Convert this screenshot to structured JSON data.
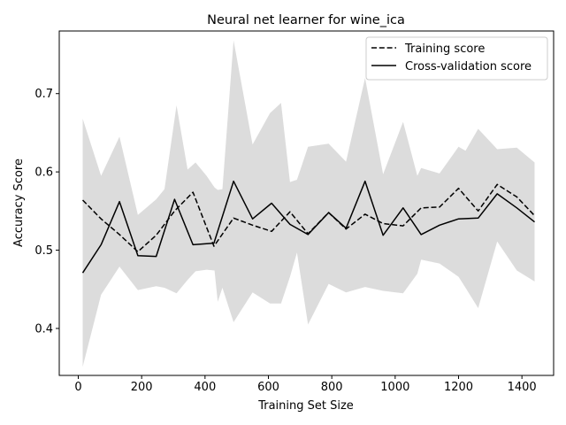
{
  "chart_data": {
    "type": "line",
    "title": "Neural net learner for wine_ica",
    "xlabel": "Training Set Size",
    "ylabel": "Accuracy Score",
    "xlim": [
      -60,
      1500
    ],
    "ylim": [
      0.34,
      0.78
    ],
    "xticks": [
      0,
      200,
      400,
      600,
      800,
      1000,
      1200,
      1400
    ],
    "yticks": [
      0.4,
      0.5,
      0.6,
      0.7
    ],
    "grid": false,
    "legend_position": "top-right",
    "x": [
      14,
      72,
      130,
      188,
      246,
      304,
      362,
      420,
      478,
      536,
      594,
      652,
      710,
      768,
      826,
      884,
      942,
      1000,
      1058,
      1116,
      1174,
      1232,
      1290,
      1348,
      1406,
      1440
    ],
    "x_band": [
      14,
      72,
      130,
      188,
      246,
      272,
      310,
      345,
      370,
      405,
      430,
      440,
      455,
      490,
      550,
      605,
      640,
      668,
      690,
      725,
      790,
      845,
      905,
      962,
      1025,
      1070,
      1082,
      1140,
      1200,
      1222,
      1262,
      1322,
      1384,
      1440
    ],
    "band_upper": [
      0.668,
      0.595,
      0.645,
      0.545,
      0.565,
      0.578,
      0.685,
      0.603,
      0.612,
      0.595,
      0.58,
      0.577,
      0.578,
      0.768,
      0.635,
      0.675,
      0.688,
      0.587,
      0.59,
      0.632,
      0.636,
      0.613,
      0.72,
      0.597,
      0.664,
      0.595,
      0.605,
      0.598,
      0.632,
      0.627,
      0.655,
      0.629,
      0.631,
      0.612
    ],
    "band_lower": [
      0.351,
      0.443,
      0.479,
      0.449,
      0.454,
      0.452,
      0.445,
      0.462,
      0.473,
      0.475,
      0.474,
      0.434,
      0.452,
      0.408,
      0.446,
      0.432,
      0.432,
      0.466,
      0.497,
      0.405,
      0.457,
      0.446,
      0.453,
      0.448,
      0.445,
      0.47,
      0.488,
      0.483,
      0.466,
      0.452,
      0.426,
      0.511,
      0.474,
      0.46
    ],
    "series": [
      {
        "name": "Training score",
        "style": "dashed",
        "color": "#000000",
        "x": [
          14,
          72,
          130,
          188,
          246,
          304,
          362,
          428,
          490,
          550,
          610,
          668,
          725,
          790,
          845,
          905,
          962,
          1025,
          1082,
          1140,
          1200,
          1262,
          1322,
          1384,
          1440
        ],
        "values": [
          0.564,
          0.54,
          0.52,
          0.498,
          0.519,
          0.55,
          0.574,
          0.505,
          0.541,
          0.532,
          0.524,
          0.549,
          0.521,
          0.548,
          0.527,
          0.546,
          0.534,
          0.531,
          0.554,
          0.555,
          0.579,
          0.55,
          0.584,
          0.568,
          0.544
        ]
      },
      {
        "name": "Cross-validation score",
        "style": "solid",
        "color": "#000000",
        "x": [
          14,
          72,
          130,
          188,
          246,
          304,
          362,
          428,
          490,
          550,
          610,
          668,
          725,
          790,
          845,
          905,
          962,
          1025,
          1082,
          1140,
          1200,
          1262,
          1322,
          1384,
          1440
        ],
        "values": [
          0.471,
          0.507,
          0.562,
          0.493,
          0.492,
          0.565,
          0.507,
          0.509,
          0.588,
          0.54,
          0.56,
          0.533,
          0.52,
          0.548,
          0.528,
          0.588,
          0.519,
          0.554,
          0.52,
          0.532,
          0.54,
          0.541,
          0.572,
          0.554,
          0.536
        ]
      }
    ],
    "band_color": "#dcdcdc",
    "line_color": "#000000"
  }
}
